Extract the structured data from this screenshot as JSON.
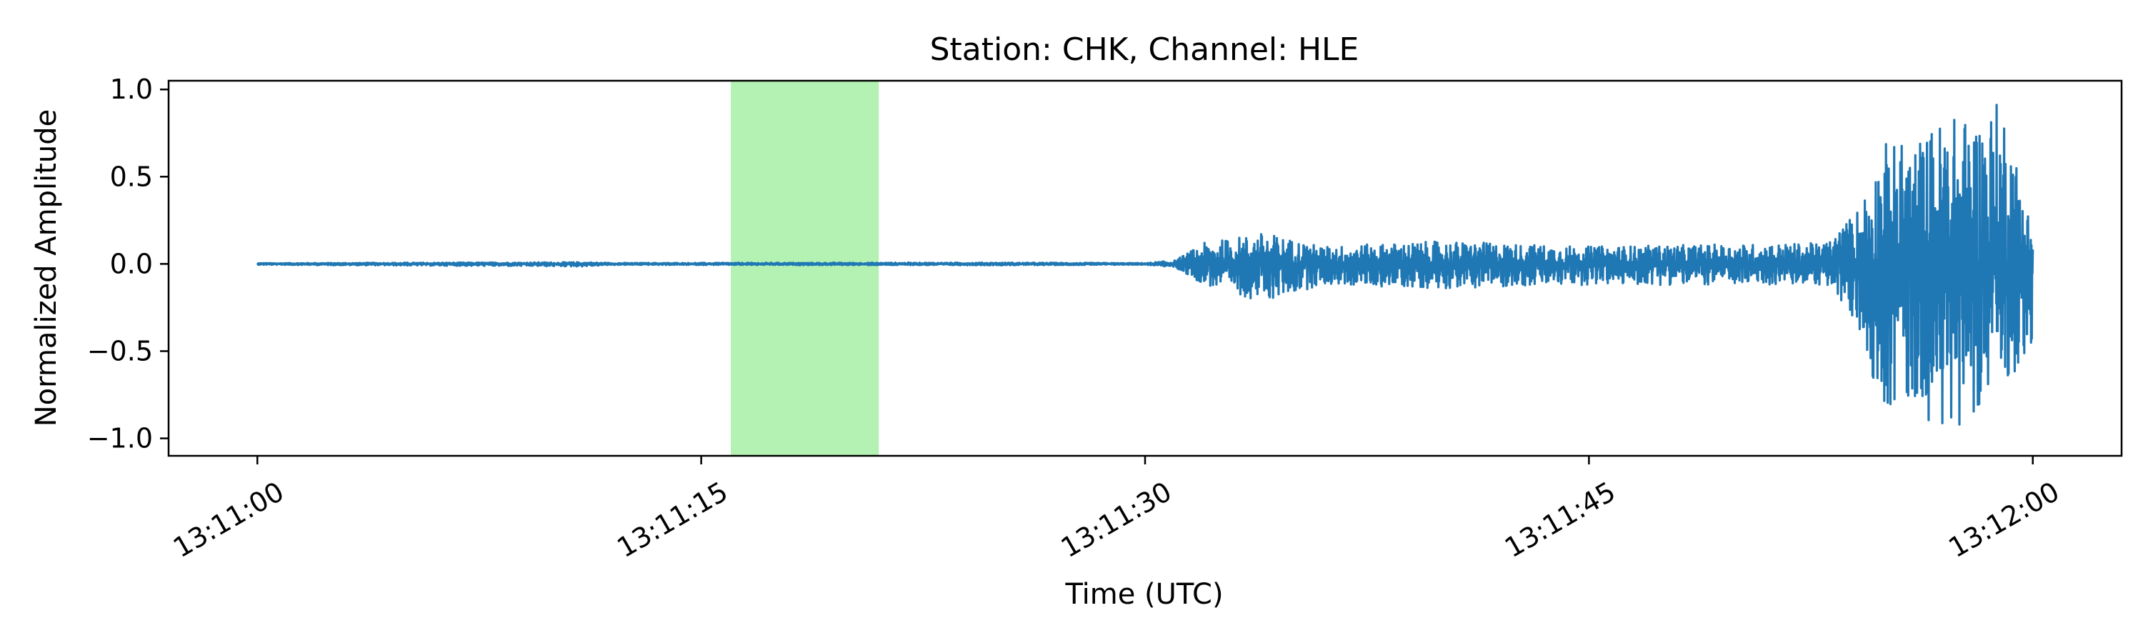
{
  "chart_data": {
    "type": "line",
    "title": "Station: CHK, Channel: HLE",
    "xlabel": "Time (UTC)",
    "ylabel": "Normalized Amplitude",
    "x_range": [
      "13:10:57",
      "13:12:03"
    ],
    "ylim": [
      -1.1,
      1.05
    ],
    "grid": false,
    "legend": "none",
    "x_ticks": [
      {
        "t": "13:11:00",
        "label": "13:11:00"
      },
      {
        "t": "13:11:15",
        "label": "13:11:15"
      },
      {
        "t": "13:11:30",
        "label": "13:11:30"
      },
      {
        "t": "13:11:45",
        "label": "13:11:45"
      },
      {
        "t": "13:12:00",
        "label": "13:12:00"
      }
    ],
    "y_ticks": [
      {
        "v": 1.0,
        "label": "1.0"
      },
      {
        "v": 0.5,
        "label": "0.5"
      },
      {
        "v": 0.0,
        "label": "0.0"
      },
      {
        "v": -0.5,
        "label": "−0.5"
      },
      {
        "v": -1.0,
        "label": "−1.0"
      }
    ],
    "highlight": {
      "start": "13:11:16",
      "end": "13:11:21",
      "color": "#b3f2b3"
    },
    "series": [
      {
        "color": "#1f77b4",
        "t_start": "13:11:00",
        "t_end": "13:12:00",
        "envelope": [
          {
            "t": "13:11:00",
            "upper": 0.005,
            "lower": -0.005
          },
          {
            "t": "13:11:11",
            "upper": 0.01,
            "lower": -0.015
          },
          {
            "t": "13:11:12",
            "upper": 0.006,
            "lower": -0.006
          },
          {
            "t": "13:11:25",
            "upper": 0.008,
            "lower": -0.008
          },
          {
            "t": "13:11:30",
            "upper": 0.005,
            "lower": -0.005
          },
          {
            "t": "13:11:31",
            "upper": 0.02,
            "lower": -0.02
          },
          {
            "t": "13:11:32",
            "upper": 0.12,
            "lower": -0.12
          },
          {
            "t": "13:11:34",
            "upper": 0.18,
            "lower": -0.22
          },
          {
            "t": "13:11:36",
            "upper": 0.1,
            "lower": -0.12
          },
          {
            "t": "13:11:40",
            "upper": 0.13,
            "lower": -0.14
          },
          {
            "t": "13:11:45",
            "upper": 0.1,
            "lower": -0.12
          },
          {
            "t": "13:11:53",
            "upper": 0.12,
            "lower": -0.12
          },
          {
            "t": "13:11:54",
            "upper": 0.3,
            "lower": -0.35
          },
          {
            "t": "13:11:55",
            "upper": 0.7,
            "lower": -0.85
          },
          {
            "t": "13:11:56",
            "upper": 0.7,
            "lower": -0.8
          },
          {
            "t": "13:11:57",
            "upper": 0.85,
            "lower": -1.0
          },
          {
            "t": "13:11:58",
            "upper": 0.85,
            "lower": -0.85
          },
          {
            "t": "13:11:59",
            "upper": 0.95,
            "lower": -0.7
          },
          {
            "t": "13:12:00",
            "upper": 0.2,
            "lower": -0.5
          }
        ]
      }
    ]
  }
}
